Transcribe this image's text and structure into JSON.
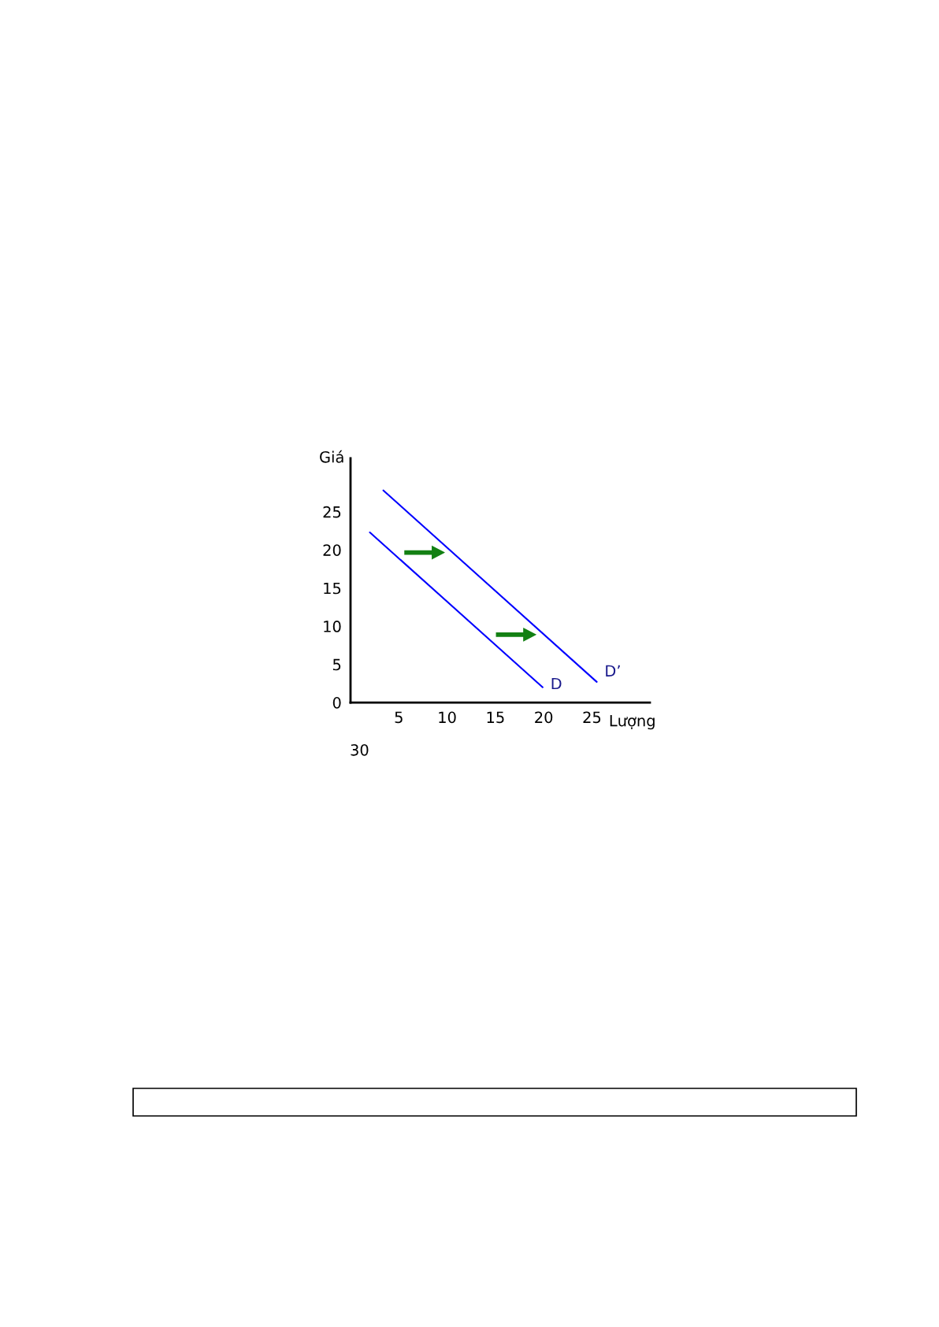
{
  "chart_data": {
    "type": "line",
    "xlabel": "Lượng",
    "ylabel": "Giá",
    "xlim": [
      0,
      31
    ],
    "ylim": [
      0,
      32
    ],
    "xticks": [
      5,
      10,
      15,
      20,
      25
    ],
    "yticks": [
      0,
      5,
      10,
      15,
      20,
      25
    ],
    "grid": false,
    "annotations": [
      "30"
    ],
    "series": [
      {
        "name": "D",
        "color": "#0000ff",
        "x": [
          2.0,
          19.9
        ],
        "values": [
          22.3,
          2.0
        ]
      },
      {
        "name": "D’",
        "color": "#0000ff",
        "x": [
          3.4,
          25.5
        ],
        "values": [
          27.8,
          2.7
        ]
      }
    ]
  }
}
